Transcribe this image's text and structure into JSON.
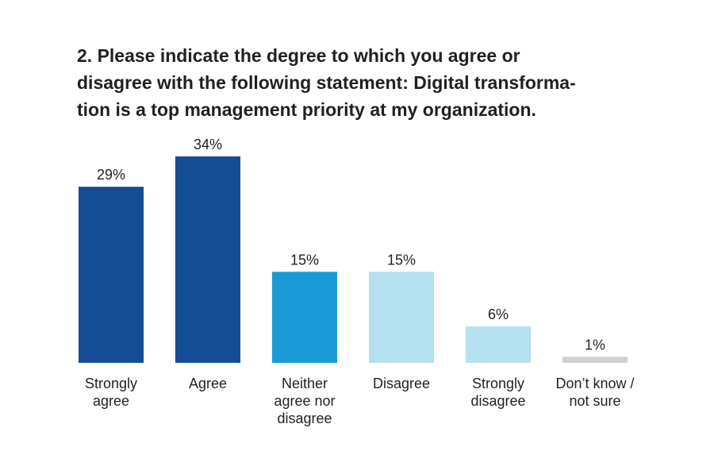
{
  "chart_data": {
    "type": "bar",
    "title": [
      "2. Please indicate the degree to which you agree or",
      "disagree with the following statement: Digital transforma-",
      "tion is a top management priority at my organization."
    ],
    "categories": [
      [
        "Strongly",
        "agree"
      ],
      [
        "Agree"
      ],
      [
        "Neither",
        "agree nor",
        "disagree"
      ],
      [
        "Disagree"
      ],
      [
        "Strongly",
        "disagree"
      ],
      [
        "Don’t know /",
        "not sure"
      ]
    ],
    "values": [
      29,
      34,
      15,
      15,
      6,
      1
    ],
    "value_labels": [
      "29%",
      "34%",
      "15%",
      "15%",
      "6%",
      "1%"
    ],
    "colors": [
      "#164c94",
      "#164c94",
      "#1a9ad6",
      "#b3e1ef",
      "#b3e1ef",
      "#d0d0d0"
    ]
  }
}
